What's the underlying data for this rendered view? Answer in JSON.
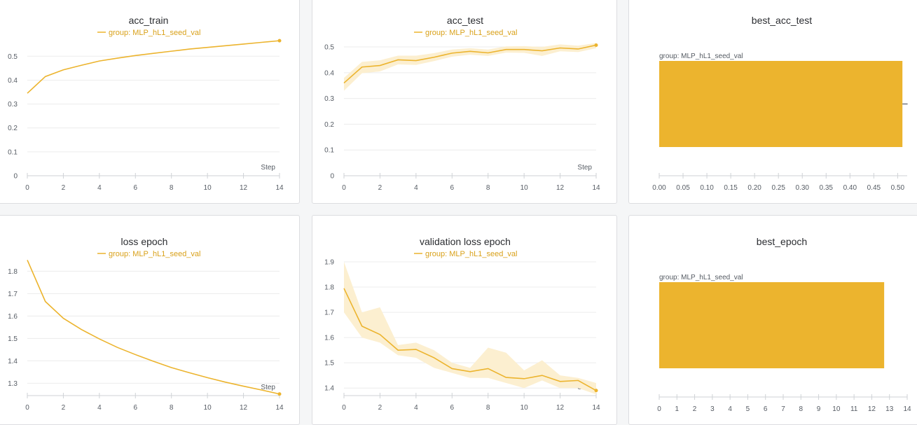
{
  "colors": {
    "series": "#ECB42E",
    "band": "#FCEFD0",
    "grid": "#ececec",
    "axis": "#cfd2d6"
  },
  "chart_data": [
    {
      "type": "line",
      "title": "acc_train",
      "legend": "group: MLP_hL1_seed_val",
      "xlabel": "Step",
      "x": [
        0,
        1,
        2,
        3,
        4,
        5,
        6,
        7,
        8,
        9,
        10,
        11,
        12,
        13,
        14
      ],
      "series": [
        {
          "name": "group: MLP_hL1_seed_val",
          "values": [
            0.345,
            0.415,
            0.443,
            0.462,
            0.48,
            0.492,
            0.503,
            0.512,
            0.521,
            0.53,
            0.537,
            0.544,
            0.551,
            0.558,
            0.565
          ]
        }
      ],
      "xlim": [
        0,
        14
      ],
      "ylim": [
        0,
        0.58
      ],
      "xticks": [
        "0",
        "2",
        "4",
        "6",
        "8",
        "10",
        "12",
        "14"
      ],
      "yticks": [
        "0",
        "0.1",
        "0.2",
        "0.3",
        "0.4",
        "0.5"
      ]
    },
    {
      "type": "line",
      "title": "acc_test",
      "legend": "group: MLP_hL1_seed_val",
      "xlabel": "Step",
      "x": [
        0,
        1,
        2,
        3,
        4,
        5,
        6,
        7,
        8,
        9,
        10,
        11,
        12,
        13,
        14
      ],
      "series": [
        {
          "name": "group: MLP_hL1_seed_val",
          "values": [
            0.36,
            0.422,
            0.428,
            0.45,
            0.447,
            0.46,
            0.476,
            0.483,
            0.477,
            0.49,
            0.49,
            0.485,
            0.496,
            0.492,
            0.507
          ],
          "lower": [
            0.33,
            0.398,
            0.405,
            0.432,
            0.43,
            0.445,
            0.462,
            0.47,
            0.465,
            0.478,
            0.477,
            0.465,
            0.483,
            0.48,
            0.495
          ],
          "upper": [
            0.38,
            0.442,
            0.448,
            0.466,
            0.466,
            0.476,
            0.49,
            0.495,
            0.49,
            0.502,
            0.503,
            0.5,
            0.51,
            0.505,
            0.515
          ]
        }
      ],
      "xlim": [
        0,
        14
      ],
      "ylim": [
        0,
        0.53
      ],
      "xticks": [
        "0",
        "2",
        "4",
        "6",
        "8",
        "10",
        "12",
        "14"
      ],
      "yticks": [
        "0",
        "0.1",
        "0.2",
        "0.3",
        "0.4",
        "0.5"
      ]
    },
    {
      "type": "bar",
      "orientation": "horizontal",
      "title": "best_acc_test",
      "categories": [
        "group: MLP_hL1_seed_val"
      ],
      "values": [
        0.51
      ],
      "error": [
        0.515
      ],
      "xlim": [
        0,
        0.52
      ],
      "xticks": [
        "0.00",
        "0.05",
        "0.10",
        "0.15",
        "0.20",
        "0.25",
        "0.30",
        "0.35",
        "0.40",
        "0.45",
        "0.50"
      ]
    },
    {
      "type": "line",
      "title": "loss epoch",
      "legend": "group: MLP_hL1_seed_val",
      "xlabel": "Step",
      "x": [
        0,
        1,
        2,
        3,
        4,
        5,
        6,
        7,
        8,
        9,
        10,
        11,
        12,
        13,
        14
      ],
      "series": [
        {
          "name": "group: MLP_hL1_seed_val",
          "values": [
            1.85,
            1.665,
            1.59,
            1.54,
            1.498,
            1.46,
            1.428,
            1.398,
            1.37,
            1.347,
            1.325,
            1.305,
            1.287,
            1.27,
            1.252
          ]
        }
      ],
      "xlim": [
        0,
        14
      ],
      "ylim": [
        1.245,
        1.87
      ],
      "xticks": [
        "0",
        "2",
        "4",
        "6",
        "8",
        "10",
        "12",
        "14"
      ],
      "yticks": [
        "1.3",
        "1.4",
        "1.5",
        "1.6",
        "1.7",
        "1.8"
      ]
    },
    {
      "type": "line",
      "title": "validation loss epoch",
      "legend": "group: MLP_hL1_seed_val",
      "xlabel": "Step",
      "x": [
        0,
        1,
        2,
        3,
        4,
        5,
        6,
        7,
        8,
        9,
        10,
        11,
        12,
        13,
        14
      ],
      "series": [
        {
          "name": "group: MLP_hL1_seed_val",
          "values": [
            1.795,
            1.645,
            1.612,
            1.55,
            1.553,
            1.52,
            1.477,
            1.465,
            1.477,
            1.442,
            1.437,
            1.45,
            1.426,
            1.43,
            1.39
          ],
          "lower": [
            1.7,
            1.6,
            1.58,
            1.53,
            1.52,
            1.48,
            1.46,
            1.44,
            1.44,
            1.42,
            1.4,
            1.43,
            1.4,
            1.4,
            1.375
          ],
          "upper": [
            1.9,
            1.7,
            1.72,
            1.57,
            1.58,
            1.55,
            1.5,
            1.48,
            1.56,
            1.54,
            1.47,
            1.51,
            1.45,
            1.44,
            1.42
          ]
        }
      ],
      "xlim": [
        0,
        14
      ],
      "ylim": [
        1.37,
        1.9
      ],
      "xticks": [
        "0",
        "2",
        "4",
        "6",
        "8",
        "10",
        "12",
        "14"
      ],
      "yticks": [
        "1.4",
        "1.5",
        "1.6",
        "1.7",
        "1.8",
        "1.9"
      ]
    },
    {
      "type": "bar",
      "orientation": "horizontal",
      "title": "best_epoch",
      "categories": [
        "group: MLP_hL1_seed_val"
      ],
      "values": [
        12.7
      ],
      "xlim": [
        0,
        14
      ],
      "xticks": [
        "0",
        "1",
        "2",
        "3",
        "4",
        "5",
        "6",
        "7",
        "8",
        "9",
        "10",
        "11",
        "12",
        "13",
        "14"
      ]
    }
  ]
}
